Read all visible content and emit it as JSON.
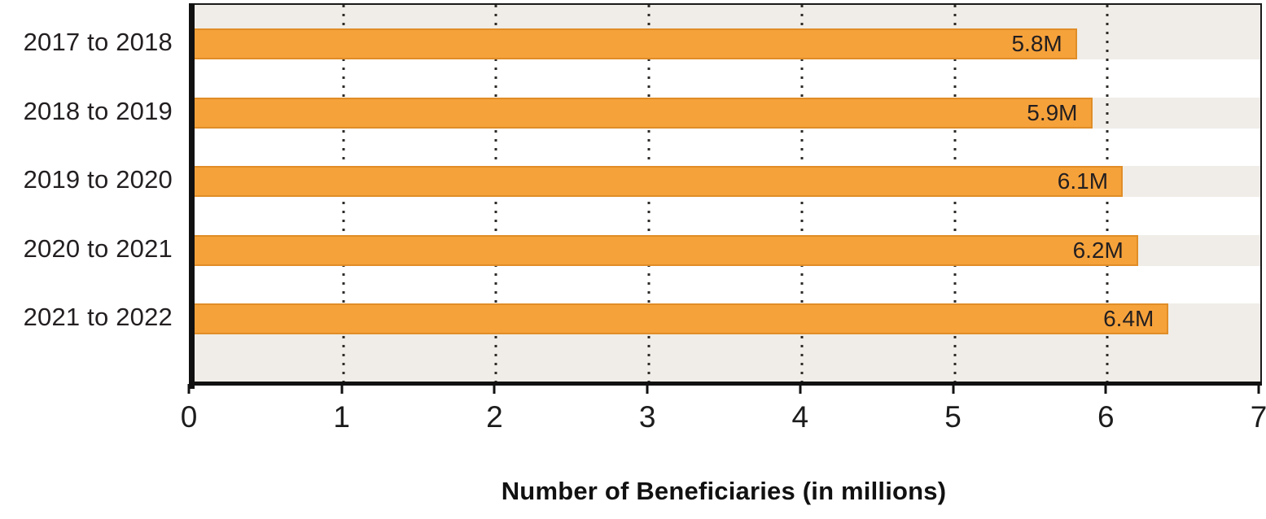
{
  "chart_data": {
    "type": "bar",
    "orientation": "horizontal",
    "title": "",
    "xlabel": "Number of Beneficiaries (in millions)",
    "ylabel": "",
    "categories": [
      "2017 to 2018",
      "2018 to 2019",
      "2019 to 2020",
      "2020 to 2021",
      "2021 to 2022"
    ],
    "values": [
      5.8,
      5.9,
      6.1,
      6.2,
      6.4
    ],
    "value_labels": [
      "5.8M",
      "5.9M",
      "6.1M",
      "6.2M",
      "6.4M"
    ],
    "xlim": [
      0,
      7
    ],
    "x_ticks": [
      0,
      1,
      2,
      3,
      4,
      5,
      6,
      7
    ],
    "grid": "dotted-vertical",
    "legend": "none",
    "colors": {
      "bar_fill": "#F6A23B",
      "bar_edge": "#E08D27",
      "plot_background": "#F0EDE8",
      "stripe": "#FFFFFF",
      "axis": "#111111",
      "text": "#231F20"
    }
  }
}
